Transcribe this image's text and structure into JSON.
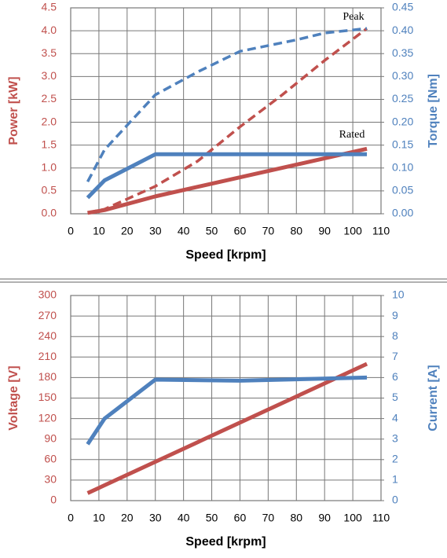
{
  "chart_data": [
    {
      "type": "line",
      "xlabel": "Speed [krpm]",
      "ylabel": "Power [kW]",
      "y2label": "Torque [Nm]",
      "ylabel_color": "#c0504d",
      "y2label_color": "#4f81bd",
      "grid": true,
      "xlim": [
        0,
        110
      ],
      "xticks": [
        0,
        10,
        20,
        30,
        40,
        50,
        60,
        70,
        80,
        90,
        100,
        110
      ],
      "ylim": [
        0,
        4.5
      ],
      "yticks": [
        {
          "value": 0,
          "label": "0.0"
        },
        0.5,
        {
          "value": 1,
          "label": "1.0"
        },
        1.5,
        {
          "value": 2,
          "label": "2.0"
        },
        2.5,
        {
          "value": 3,
          "label": "3.0"
        },
        3.5,
        {
          "value": 4,
          "label": "4.0"
        },
        4.5
      ],
      "y2lim": [
        0,
        0.45
      ],
      "y2ticks": [
        {
          "value": 0,
          "label": "0.00"
        },
        0.05,
        {
          "value": 0.1,
          "label": "0.10"
        },
        0.15,
        {
          "value": 0.2,
          "label": "0.20"
        },
        0.25,
        {
          "value": 0.3,
          "label": "0.30"
        },
        0.35,
        {
          "value": 0.4,
          "label": "0.40"
        },
        0.45
      ],
      "annotations": [
        "Peak",
        "Rated"
      ],
      "series": [
        {
          "color": "#c0504d",
          "line_style": "dashed",
          "x": [
            6,
            12,
            30,
            45,
            60,
            75,
            90,
            105
          ],
          "values": [
            0.02,
            0.1,
            0.6,
            1.15,
            1.9,
            2.6,
            3.35,
            4.05
          ]
        },
        {
          "color": "#c0504d",
          "line_style": "solid",
          "x": [
            6,
            12,
            30,
            105
          ],
          "values": [
            0.02,
            0.08,
            0.38,
            1.42
          ]
        },
        {
          "color": "#4f81bd",
          "line_style": "dashed",
          "axis": "y2",
          "x": [
            6,
            12,
            30,
            45,
            60,
            80,
            90,
            105
          ],
          "values": [
            0.07,
            0.14,
            0.26,
            0.31,
            0.355,
            0.38,
            0.395,
            0.405
          ]
        },
        {
          "color": "#4f81bd",
          "line_style": "solid",
          "axis": "y2",
          "x": [
            6,
            12,
            30,
            105
          ],
          "values": [
            0.035,
            0.073,
            0.13,
            0.13
          ]
        }
      ]
    },
    {
      "type": "line",
      "xlabel": "Speed [krpm]",
      "ylabel": "Voltage [V]",
      "y2label": "Current [A]",
      "ylabel_color": "#c0504d",
      "y2label_color": "#4f81bd",
      "grid": true,
      "xlim": [
        0,
        110
      ],
      "xticks": [
        0,
        10,
        20,
        30,
        40,
        50,
        60,
        70,
        80,
        90,
        100,
        110
      ],
      "ylim": [
        0,
        300
      ],
      "yticks": [
        0,
        30,
        60,
        90,
        120,
        150,
        180,
        210,
        240,
        270,
        300
      ],
      "y2lim": [
        0,
        10
      ],
      "y2ticks": [
        0,
        1,
        2,
        3,
        4,
        5,
        6,
        7,
        8,
        9,
        10
      ],
      "series": [
        {
          "color": "#c0504d",
          "line_style": "solid",
          "x": [
            6,
            105
          ],
          "values": [
            11,
            200
          ]
        },
        {
          "color": "#4f81bd",
          "line_style": "solid",
          "axis": "y2",
          "x": [
            6,
            12,
            30,
            60,
            105
          ],
          "values": [
            2.75,
            4.0,
            5.9,
            5.85,
            6.0
          ]
        }
      ]
    }
  ]
}
